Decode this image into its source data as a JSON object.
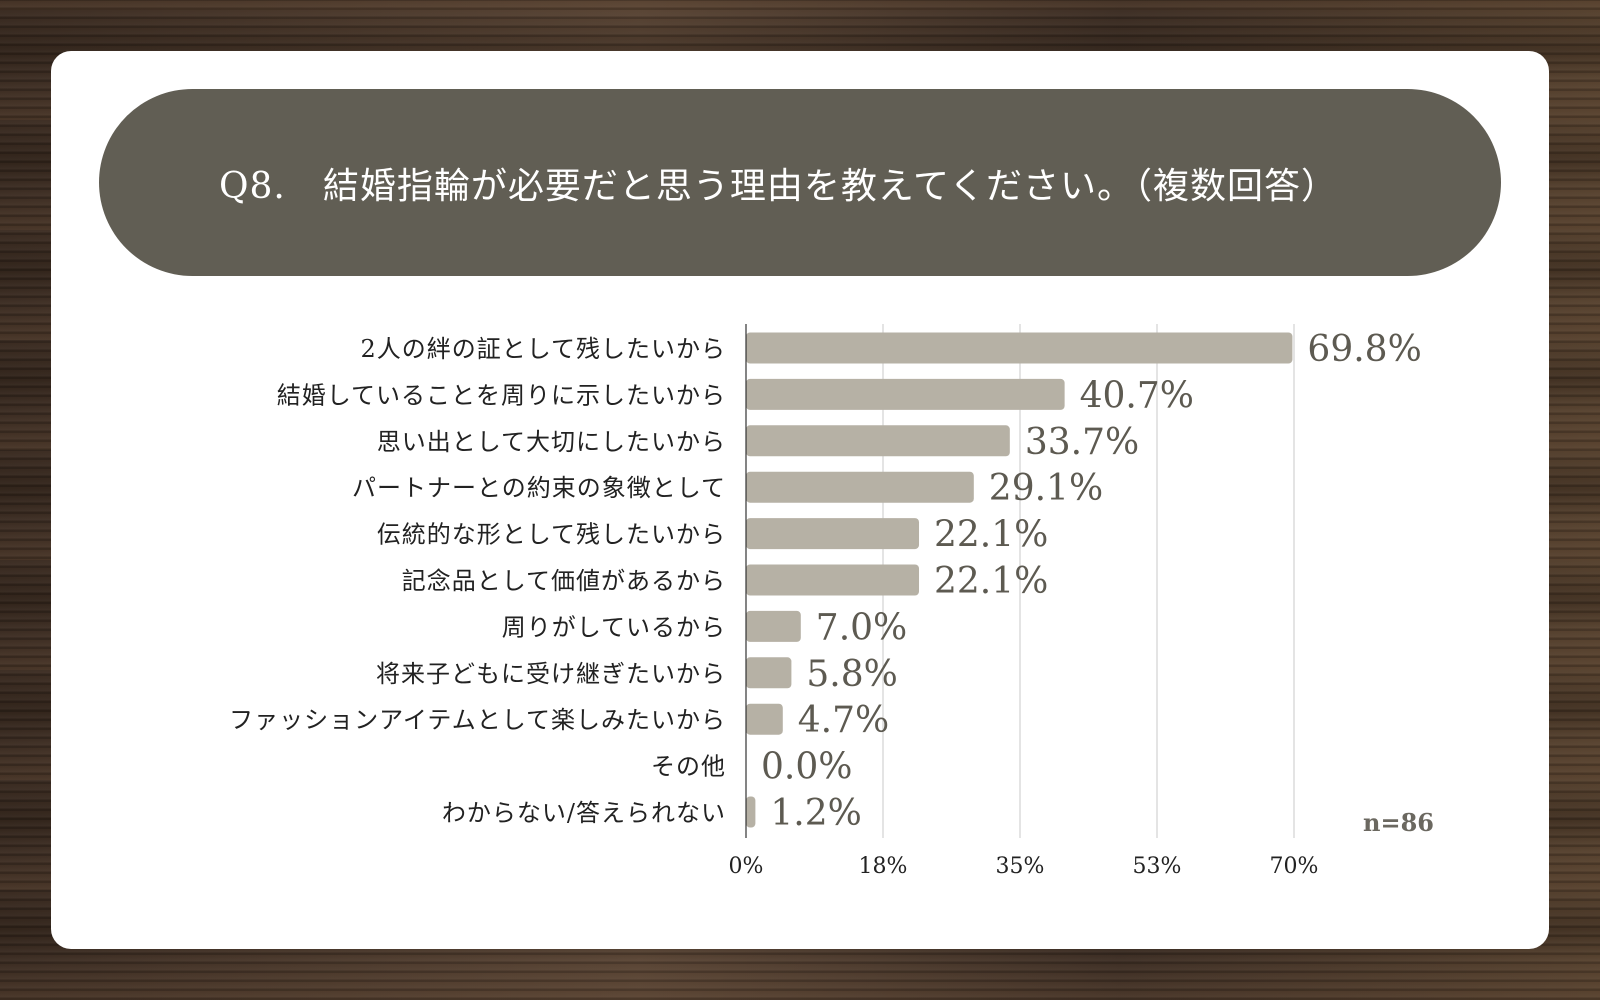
{
  "title": "Q8.　結婚指輪が必要だと思う理由を教えてください。（複数回答）",
  "colors": {
    "bar": "#b6b1a5",
    "value_text": "#5d5a51",
    "title_bg": "#615e54",
    "grid": "#c9c9c9",
    "axis": "#333333",
    "label_text": "#222222",
    "note_text": "#6b6860"
  },
  "chart_data": {
    "type": "bar",
    "orientation": "horizontal",
    "categories": [
      "2人の絆の証として残したいから",
      "結婚していることを周りに示したいから",
      "思い出として大切にしたいから",
      "パートナーとの約束の象徴として",
      "伝統的な形として残したいから",
      "記念品として価値があるから",
      "周りがしているから",
      "将来子どもに受け継ぎたいから",
      "ファッションアイテムとして楽しみたいから",
      "その他",
      "わからない/答えられない"
    ],
    "values": [
      69.8,
      40.7,
      33.7,
      29.1,
      22.1,
      22.1,
      7.0,
      5.8,
      4.7,
      0.0,
      1.2
    ],
    "value_labels": [
      "69.8%",
      "40.7%",
      "33.7%",
      "29.1%",
      "22.1%",
      "22.1%",
      "7.0%",
      "5.8%",
      "4.7%",
      "0.0%",
      "1.2%"
    ],
    "xlim": [
      0,
      70
    ],
    "ticks": [
      0,
      17.5,
      35,
      52.5,
      70
    ],
    "tick_labels": [
      "0%",
      "18%",
      "35%",
      "53%",
      "70%"
    ],
    "grid": true,
    "note": "n=86"
  }
}
